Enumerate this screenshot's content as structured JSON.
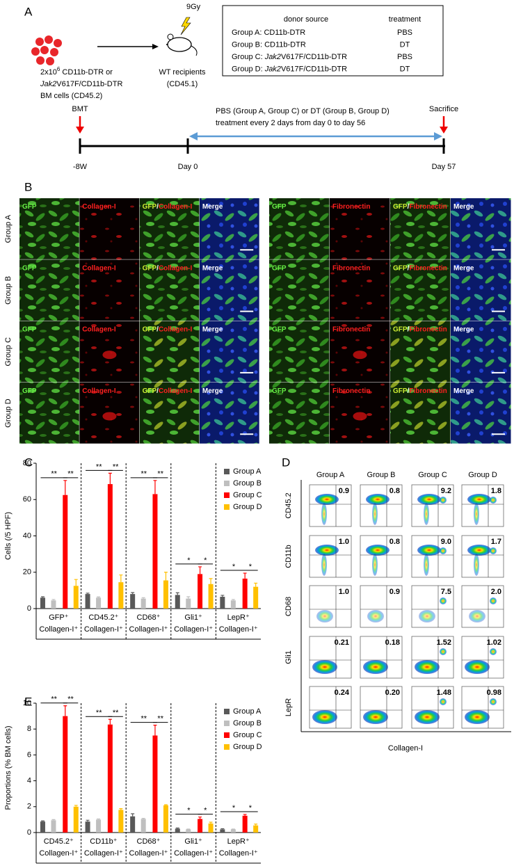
{
  "panel_a": {
    "label": "A",
    "dose": "9Gy",
    "donor_lines": [
      [
        {
          "text": "2x10"
        },
        {
          "text": "6",
          "sup": true
        },
        {
          "text": " CD11b-DTR or"
        }
      ],
      [
        {
          "text": "Jak2",
          "italic": true
        },
        {
          "text": "V617F/CD11b-DTR"
        }
      ],
      [
        {
          "text": "BM cells (CD45.2)"
        }
      ]
    ],
    "recipient_lines": [
      "WT recipients",
      "(CD45.1)"
    ],
    "table": {
      "headers": [
        "donor source",
        "treatment"
      ],
      "rows": [
        {
          "donor": [
            {
              "text": "Group A: CD11b-DTR"
            }
          ],
          "treatment": "PBS"
        },
        {
          "donor": [
            {
              "text": "Group B: CD11b-DTR"
            }
          ],
          "treatment": "DT"
        },
        {
          "donor": [
            {
              "text": "Group C: "
            },
            {
              "text": "Jak2",
              "italic": true
            },
            {
              "text": "V617F/CD11b-DTR"
            }
          ],
          "treatment": "PBS"
        },
        {
          "donor": [
            {
              "text": "Group D: "
            },
            {
              "text": "Jak2",
              "italic": true
            },
            {
              "text": "V617F/CD11b-DTR"
            }
          ],
          "treatment": "DT"
        }
      ]
    },
    "timeline": {
      "start_label": "BMT",
      "end_label": "Sacrifice",
      "treatment_lines": [
        "PBS (Group A, Group C) or DT (Group B, Group D)",
        "treatment every 2 days from day 0 to day 56"
      ],
      "ticks": [
        "-8W",
        "Day 0",
        "Day 57"
      ]
    }
  },
  "panel_b": {
    "label": "B",
    "rows": [
      "Group A",
      "Group B",
      "Group C",
      "Group D"
    ],
    "gfp": "GFP",
    "separator": "/",
    "merge": "Merge",
    "stains": [
      "Collagen-I",
      "Fibronectin"
    ]
  },
  "chart_data": [
    {
      "type": "bar",
      "panel_label": "C",
      "ylabel": "Cells (/5 HPF)",
      "categories": [
        [
          "GFP⁺",
          "Collagen-I⁺"
        ],
        [
          "CD45.2⁺",
          "Collagen-I⁺"
        ],
        [
          "CD68⁺",
          "Collagen-I⁺"
        ],
        [
          "Gli1⁺",
          "Collagen-I⁺"
        ],
        [
          "LepR⁺",
          "Collagen-I⁺"
        ]
      ],
      "series": [
        {
          "name": "Group A",
          "color": "#595959",
          "values": [
            6,
            8,
            8,
            7.5,
            6.5
          ],
          "errors": [
            0.5,
            0.5,
            0.8,
            1.2,
            0.8
          ]
        },
        {
          "name": "Group B",
          "color": "#bfbfbf",
          "values": [
            4.5,
            6,
            5.5,
            5.5,
            4.5
          ],
          "errors": [
            0.5,
            0.4,
            0.5,
            1,
            0.5
          ]
        },
        {
          "name": "Group C",
          "color": "#ff0000",
          "values": [
            62.5,
            68.5,
            63,
            19,
            16.5
          ],
          "errors": [
            8,
            6,
            7.5,
            4,
            3
          ]
        },
        {
          "name": "Group D",
          "color": "#ffc000",
          "values": [
            12.5,
            14.5,
            15.5,
            13.5,
            12
          ],
          "errors": [
            3.5,
            4,
            4.5,
            3,
            2
          ]
        }
      ],
      "significance": [
        "**",
        "**",
        "**",
        "*",
        "*"
      ],
      "ylim": [
        0,
        80
      ],
      "yticks": [
        0,
        20,
        40,
        60,
        80
      ],
      "legend": "upper right"
    },
    {
      "type": "bar",
      "panel_label": "E",
      "ylabel": "Proportions (% BM cells)",
      "categories": [
        [
          "CD45.2⁺",
          "Collagen-I⁺"
        ],
        [
          "CD11b⁺",
          "Collagen-I⁺"
        ],
        [
          "CD68⁺",
          "Collagen-I⁺"
        ],
        [
          "Gli1⁺",
          "Collagen-I⁺"
        ],
        [
          "LepR⁺",
          "Collagen-I⁺"
        ]
      ],
      "series": [
        {
          "name": "Group A",
          "color": "#595959",
          "values": [
            0.85,
            0.85,
            1.25,
            0.3,
            0.25
          ],
          "errors": [
            0.05,
            0.1,
            0.2,
            0.05,
            0.05
          ]
        },
        {
          "name": "Group B",
          "color": "#bfbfbf",
          "values": [
            0.95,
            1.0,
            1.05,
            0.25,
            0.25
          ],
          "errors": [
            0.05,
            0.05,
            0.05,
            0.02,
            0.02
          ]
        },
        {
          "name": "Group C",
          "color": "#ff0000",
          "values": [
            9.0,
            8.35,
            7.5,
            1.05,
            1.3
          ],
          "errors": [
            0.8,
            0.4,
            0.8,
            0.15,
            0.1
          ]
        },
        {
          "name": "Group D",
          "color": "#ffc000",
          "values": [
            2.0,
            1.75,
            2.1,
            0.7,
            0.55
          ],
          "errors": [
            0.1,
            0.1,
            0.05,
            0.1,
            0.1
          ]
        }
      ],
      "significance": [
        "**",
        "**",
        "**",
        "*",
        "*"
      ],
      "ylim": [
        0,
        10
      ],
      "yticks": [
        0,
        2,
        4,
        6,
        8,
        10
      ],
      "legend": "upper right"
    }
  ],
  "panel_d": {
    "label": "D",
    "columns": [
      "Group A",
      "Group B",
      "Group C",
      "Group D"
    ],
    "rows": [
      "CD45.2",
      "CD11b",
      "CD68",
      "Gli1",
      "LepR"
    ],
    "values": [
      [
        "0.9",
        "0.8",
        "9.2",
        "1.8"
      ],
      [
        "1.0",
        "0.8",
        "9.0",
        "1.7"
      ],
      [
        "1.0",
        "0.9",
        "7.5",
        "2.0"
      ],
      [
        "0.21",
        "0.18",
        "1.52",
        "1.02"
      ],
      [
        "0.24",
        "0.20",
        "1.48",
        "0.98"
      ]
    ],
    "xlabel": "Collagen-I"
  }
}
